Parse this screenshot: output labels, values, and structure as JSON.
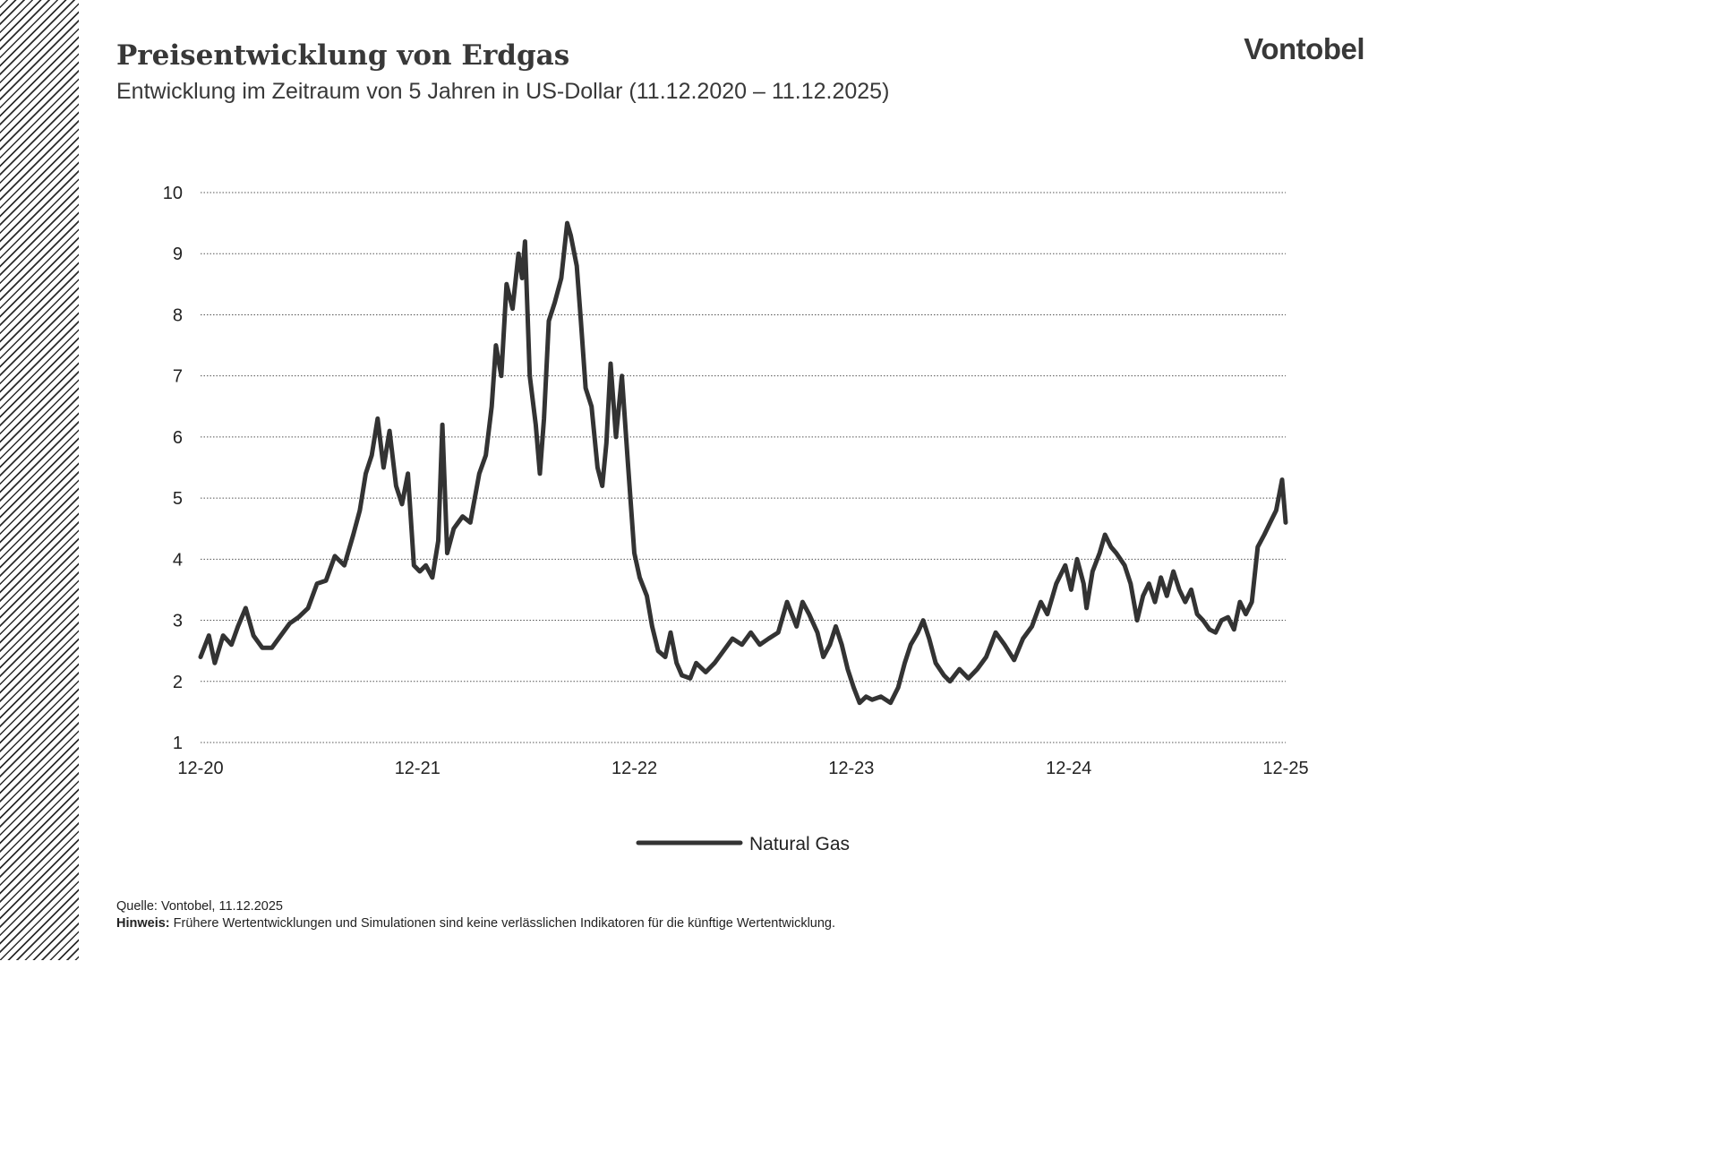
{
  "header": {
    "title": "Preisentwicklung von Erdgas",
    "subtitle": "Entwicklung im Zeitraum von 5 Jahren in US-Dollar (11.12.2020 – 11.12.2025)",
    "logo_text": "Vontobel"
  },
  "footer": {
    "source": "Quelle: Vontobel, 11.12.2025",
    "note_label": "Hinweis:",
    "note_text": "Frühere Wertentwicklungen und Simulationen sind keine verlässlichen Indikatoren für die künftige Wertentwicklung."
  },
  "colors": {
    "line": "#333333",
    "grid": "#555555",
    "text": "#222222"
  },
  "chart_data": {
    "type": "line",
    "title": "Preisentwicklung von Erdgas",
    "subtitle": "Entwicklung im Zeitraum von 5 Jahren in US-Dollar (11.12.2020 – 11.12.2025)",
    "xlabel": "",
    "ylabel": "",
    "xlim": [
      "2020-12-11",
      "2025-12-11"
    ],
    "ylim": [
      1,
      10
    ],
    "y_ticks": [
      1,
      2,
      3,
      4,
      5,
      6,
      7,
      8,
      9,
      10
    ],
    "x_ticks": [
      {
        "date": "2020-12-11",
        "label": "12-20"
      },
      {
        "date": "2021-12-11",
        "label": "12-21"
      },
      {
        "date": "2022-12-11",
        "label": "12-22"
      },
      {
        "date": "2023-12-11",
        "label": "12-23"
      },
      {
        "date": "2024-12-11",
        "label": "12-24"
      },
      {
        "date": "2025-12-11",
        "label": "12-25"
      }
    ],
    "grid": "horizontal-dotted",
    "legend": "bottom-center",
    "series": [
      {
        "name": "Natural Gas",
        "color": "#333333",
        "points": [
          [
            "2020-12-11",
            2.4
          ],
          [
            "2020-12-25",
            2.75
          ],
          [
            "2021-01-04",
            2.3
          ],
          [
            "2021-01-18",
            2.75
          ],
          [
            "2021-02-01",
            2.6
          ],
          [
            "2021-02-12",
            2.9
          ],
          [
            "2021-02-25",
            3.2
          ],
          [
            "2021-03-10",
            2.75
          ],
          [
            "2021-03-25",
            2.55
          ],
          [
            "2021-04-10",
            2.55
          ],
          [
            "2021-04-25",
            2.75
          ],
          [
            "2021-05-10",
            2.95
          ],
          [
            "2021-05-25",
            3.05
          ],
          [
            "2021-06-10",
            3.2
          ],
          [
            "2021-06-25",
            3.6
          ],
          [
            "2021-07-10",
            3.65
          ],
          [
            "2021-07-25",
            4.05
          ],
          [
            "2021-08-10",
            3.9
          ],
          [
            "2021-08-25",
            4.4
          ],
          [
            "2021-09-05",
            4.8
          ],
          [
            "2021-09-15",
            5.4
          ],
          [
            "2021-09-25",
            5.7
          ],
          [
            "2021-10-05",
            6.3
          ],
          [
            "2021-10-15",
            5.5
          ],
          [
            "2021-10-25",
            6.1
          ],
          [
            "2021-11-05",
            5.2
          ],
          [
            "2021-11-15",
            4.9
          ],
          [
            "2021-11-25",
            5.4
          ],
          [
            "2021-12-05",
            3.9
          ],
          [
            "2021-12-15",
            3.8
          ],
          [
            "2021-12-25",
            3.9
          ],
          [
            "2022-01-05",
            3.7
          ],
          [
            "2022-01-15",
            4.3
          ],
          [
            "2022-01-22",
            6.2
          ],
          [
            "2022-01-30",
            4.1
          ],
          [
            "2022-02-10",
            4.5
          ],
          [
            "2022-02-25",
            4.7
          ],
          [
            "2022-03-10",
            4.6
          ],
          [
            "2022-03-25",
            5.4
          ],
          [
            "2022-04-05",
            5.7
          ],
          [
            "2022-04-15",
            6.5
          ],
          [
            "2022-04-22",
            7.5
          ],
          [
            "2022-05-01",
            7.0
          ],
          [
            "2022-05-10",
            8.5
          ],
          [
            "2022-05-20",
            8.1
          ],
          [
            "2022-05-30",
            9.0
          ],
          [
            "2022-06-05",
            8.6
          ],
          [
            "2022-06-10",
            9.2
          ],
          [
            "2022-06-18",
            7.0
          ],
          [
            "2022-06-28",
            6.2
          ],
          [
            "2022-07-05",
            5.4
          ],
          [
            "2022-07-12",
            6.3
          ],
          [
            "2022-07-20",
            7.9
          ],
          [
            "2022-07-30",
            8.2
          ],
          [
            "2022-08-10",
            8.6
          ],
          [
            "2022-08-20",
            9.5
          ],
          [
            "2022-08-26",
            9.3
          ],
          [
            "2022-09-05",
            8.8
          ],
          [
            "2022-09-12",
            7.9
          ],
          [
            "2022-09-20",
            6.8
          ],
          [
            "2022-09-30",
            6.5
          ],
          [
            "2022-10-10",
            5.5
          ],
          [
            "2022-10-18",
            5.2
          ],
          [
            "2022-10-25",
            5.9
          ],
          [
            "2022-11-01",
            7.2
          ],
          [
            "2022-11-10",
            6.0
          ],
          [
            "2022-11-20",
            7.0
          ],
          [
            "2022-11-30",
            5.6
          ],
          [
            "2022-12-11",
            4.1
          ],
          [
            "2022-12-20",
            3.7
          ],
          [
            "2023-01-01",
            3.4
          ],
          [
            "2023-01-10",
            2.9
          ],
          [
            "2023-01-20",
            2.5
          ],
          [
            "2023-02-01",
            2.4
          ],
          [
            "2023-02-10",
            2.8
          ],
          [
            "2023-02-20",
            2.3
          ],
          [
            "2023-03-01",
            2.1
          ],
          [
            "2023-03-15",
            2.05
          ],
          [
            "2023-03-25",
            2.3
          ],
          [
            "2023-04-10",
            2.15
          ],
          [
            "2023-04-25",
            2.3
          ],
          [
            "2023-05-10",
            2.5
          ],
          [
            "2023-05-25",
            2.7
          ],
          [
            "2023-06-10",
            2.6
          ],
          [
            "2023-06-25",
            2.8
          ],
          [
            "2023-07-10",
            2.6
          ],
          [
            "2023-07-25",
            2.7
          ],
          [
            "2023-08-10",
            2.8
          ],
          [
            "2023-08-25",
            3.3
          ],
          [
            "2023-09-10",
            2.9
          ],
          [
            "2023-09-20",
            3.3
          ],
          [
            "2023-10-01",
            3.1
          ],
          [
            "2023-10-15",
            2.8
          ],
          [
            "2023-10-25",
            2.4
          ],
          [
            "2023-11-05",
            2.6
          ],
          [
            "2023-11-15",
            2.9
          ],
          [
            "2023-11-25",
            2.6
          ],
          [
            "2023-12-05",
            2.2
          ],
          [
            "2023-12-15",
            1.9
          ],
          [
            "2023-12-25",
            1.65
          ],
          [
            "2024-01-05",
            1.75
          ],
          [
            "2024-01-15",
            1.7
          ],
          [
            "2024-01-30",
            1.75
          ],
          [
            "2024-02-15",
            1.65
          ],
          [
            "2024-02-28",
            1.9
          ],
          [
            "2024-03-10",
            2.3
          ],
          [
            "2024-03-20",
            2.6
          ],
          [
            "2024-04-01",
            2.8
          ],
          [
            "2024-04-10",
            3.0
          ],
          [
            "2024-04-20",
            2.7
          ],
          [
            "2024-05-01",
            2.3
          ],
          [
            "2024-05-15",
            2.1
          ],
          [
            "2024-05-25",
            2.0
          ],
          [
            "2024-06-10",
            2.2
          ],
          [
            "2024-06-25",
            2.05
          ],
          [
            "2024-07-10",
            2.2
          ],
          [
            "2024-07-25",
            2.4
          ],
          [
            "2024-08-10",
            2.8
          ],
          [
            "2024-08-25",
            2.6
          ],
          [
            "2024-09-10",
            2.35
          ],
          [
            "2024-09-25",
            2.7
          ],
          [
            "2024-10-10",
            2.9
          ],
          [
            "2024-10-25",
            3.3
          ],
          [
            "2024-11-05",
            3.1
          ],
          [
            "2024-11-20",
            3.6
          ],
          [
            "2024-12-05",
            3.9
          ],
          [
            "2024-12-15",
            3.5
          ],
          [
            "2024-12-25",
            4.0
          ],
          [
            "2025-01-05",
            3.6
          ],
          [
            "2025-01-10",
            3.2
          ],
          [
            "2025-01-20",
            3.8
          ],
          [
            "2025-02-01",
            4.1
          ],
          [
            "2025-02-10",
            4.4
          ],
          [
            "2025-02-20",
            4.2
          ],
          [
            "2025-03-01",
            4.1
          ],
          [
            "2025-03-15",
            3.9
          ],
          [
            "2025-03-25",
            3.6
          ],
          [
            "2025-04-05",
            3.0
          ],
          [
            "2025-04-15",
            3.4
          ],
          [
            "2025-04-25",
            3.6
          ],
          [
            "2025-05-05",
            3.3
          ],
          [
            "2025-05-15",
            3.7
          ],
          [
            "2025-05-25",
            3.4
          ],
          [
            "2025-06-05",
            3.8
          ],
          [
            "2025-06-15",
            3.5
          ],
          [
            "2025-06-25",
            3.3
          ],
          [
            "2025-07-05",
            3.5
          ],
          [
            "2025-07-15",
            3.1
          ],
          [
            "2025-07-25",
            3.0
          ],
          [
            "2025-08-05",
            2.85
          ],
          [
            "2025-08-15",
            2.8
          ],
          [
            "2025-08-25",
            3.0
          ],
          [
            "2025-09-05",
            3.05
          ],
          [
            "2025-09-15",
            2.85
          ],
          [
            "2025-09-25",
            3.3
          ],
          [
            "2025-10-05",
            3.1
          ],
          [
            "2025-10-15",
            3.3
          ],
          [
            "2025-10-25",
            4.2
          ],
          [
            "2025-11-05",
            4.4
          ],
          [
            "2025-11-15",
            4.6
          ],
          [
            "2025-11-25",
            4.8
          ],
          [
            "2025-12-05",
            5.3
          ],
          [
            "2025-12-11",
            4.6
          ]
        ]
      }
    ]
  }
}
